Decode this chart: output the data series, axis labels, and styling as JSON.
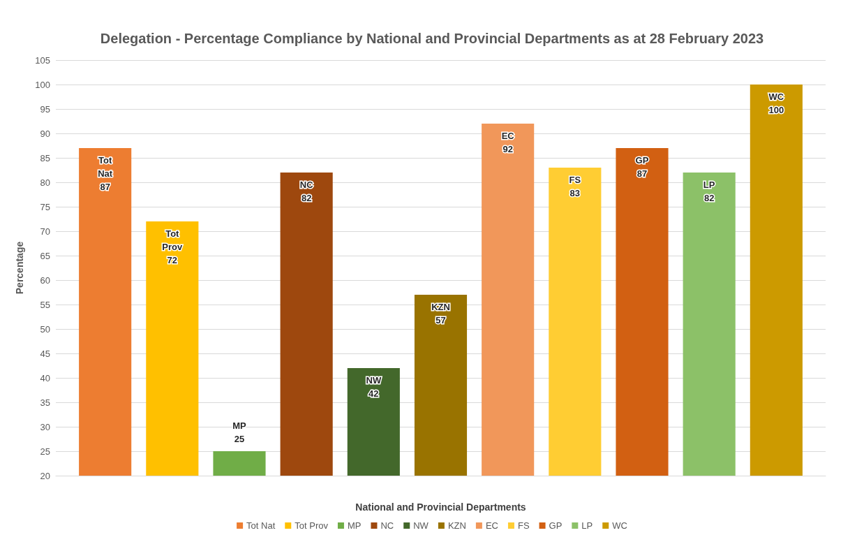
{
  "chart_data": {
    "type": "bar",
    "title": "Delegation - Percentage Compliance by National and Provincial Departments as at 28 February 2023",
    "xlabel": "National and Provincial Departments",
    "ylabel": "Percentage",
    "categories": [
      null
    ],
    "series": [
      {
        "name": "Tot Nat",
        "color": "#ed7d31",
        "values": [
          87
        ]
      },
      {
        "name": "Tot Prov",
        "color": "#ffc000",
        "values": [
          72
        ]
      },
      {
        "name": "MP",
        "color": "#70ad47",
        "values": [
          25
        ]
      },
      {
        "name": "NC",
        "color": "#9e480e",
        "values": [
          82
        ]
      },
      {
        "name": "NW",
        "color": "#43682b",
        "values": [
          42
        ]
      },
      {
        "name": "KZN",
        "color": "#997300",
        "values": [
          57
        ]
      },
      {
        "name": "EC",
        "color": "#f1975a",
        "values": [
          92
        ]
      },
      {
        "name": "FS",
        "color": "#ffcd33",
        "values": [
          83
        ]
      },
      {
        "name": "GP",
        "color": "#d26012",
        "values": [
          87
        ]
      },
      {
        "name": "LP",
        "color": "#8cc168",
        "values": [
          82
        ]
      },
      {
        "name": "WC",
        "color": "#cc9a00",
        "values": [
          100
        ]
      }
    ],
    "ylim": [
      20,
      105
    ],
    "yticks": [
      20,
      25,
      30,
      35,
      40,
      45,
      50,
      55,
      60,
      65,
      70,
      75,
      80,
      85,
      90,
      95,
      100,
      105
    ],
    "grid": "y",
    "legend": "bottom",
    "data_labels": true
  }
}
